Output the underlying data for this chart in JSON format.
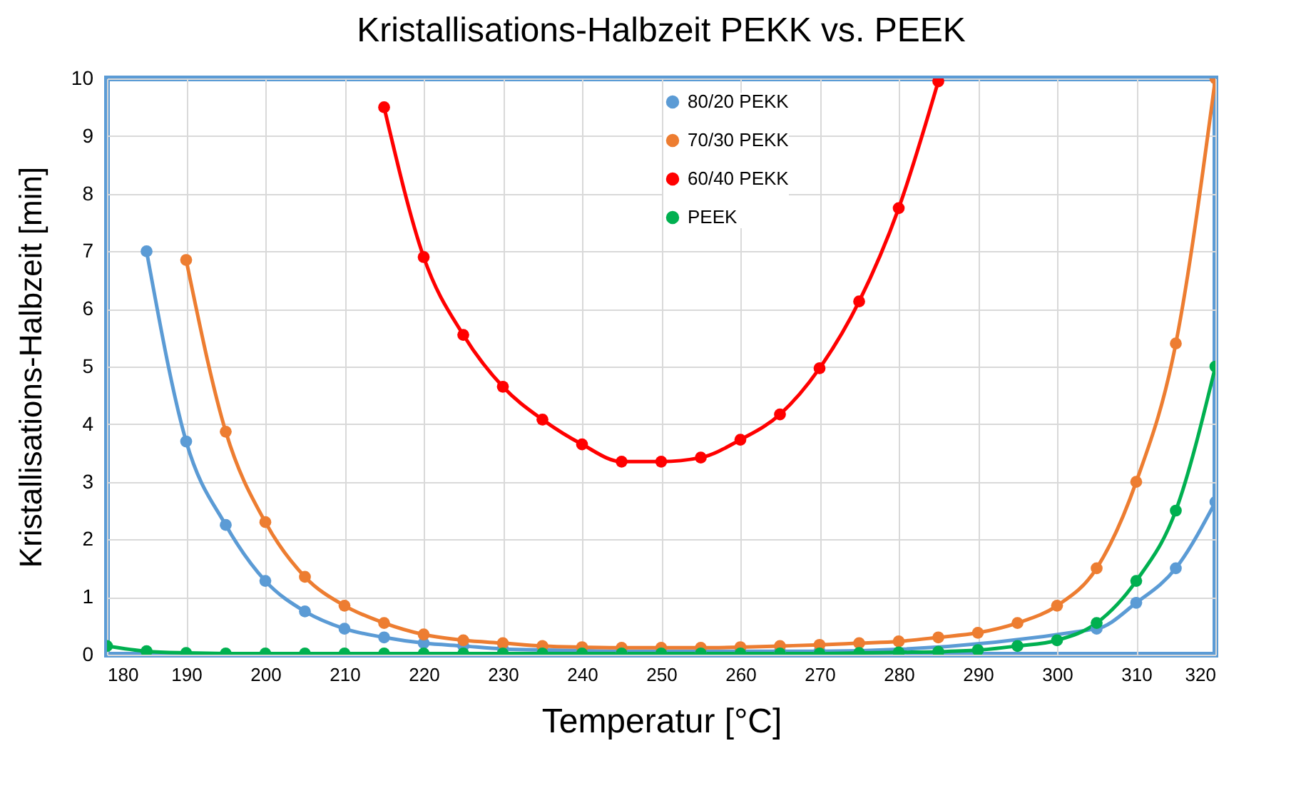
{
  "chart_data": {
    "type": "line",
    "title": "Kristallisations-Halbzeit PEKK vs. PEEK",
    "xlabel": "Temperatur [°C]",
    "ylabel": "Kristallisations-Halbzeit [min]",
    "x": [
      180,
      185,
      190,
      195,
      200,
      205,
      210,
      215,
      220,
      225,
      230,
      235,
      240,
      245,
      250,
      255,
      260,
      265,
      270,
      275,
      280,
      285,
      290,
      295,
      300,
      305,
      310,
      315,
      320
    ],
    "series": [
      {
        "name": "80/20 PEKK",
        "color": "#5b9bd5",
        "values": [
          null,
          7.0,
          3.7,
          2.25,
          1.28,
          0.75,
          0.45,
          0.3,
          0.2,
          0.15,
          0.1,
          0.08,
          0.07,
          0.06,
          0.06,
          0.06,
          0.06,
          0.06,
          0.06,
          null,
          null,
          null,
          null,
          null,
          null,
          0.45,
          0.9,
          1.5,
          2.65
        ]
      },
      {
        "name": "70/30 PEKK",
        "color": "#ed7d31",
        "values": [
          null,
          null,
          6.85,
          3.87,
          2.3,
          1.35,
          0.85,
          0.55,
          0.35,
          0.25,
          0.2,
          0.15,
          0.13,
          0.12,
          0.12,
          0.12,
          0.13,
          0.15,
          0.17,
          0.2,
          0.23,
          0.3,
          0.38,
          0.55,
          0.85,
          1.5,
          3.0,
          5.4,
          10.0
        ]
      },
      {
        "name": "60/40 PEKK",
        "color": "#ff0000",
        "values": [
          null,
          null,
          null,
          null,
          null,
          null,
          null,
          9.5,
          6.9,
          5.55,
          4.65,
          4.08,
          3.65,
          3.35,
          3.35,
          3.42,
          3.73,
          4.17,
          4.97,
          6.13,
          7.75,
          9.95,
          null,
          null,
          null,
          null,
          null,
          null,
          null
        ]
      },
      {
        "name": "PEEK",
        "color": "#00b050",
        "values": [
          0.15,
          0.06,
          0.03,
          0.02,
          0.02,
          0.02,
          0.02,
          0.02,
          0.02,
          0.02,
          0.02,
          0.02,
          0.02,
          0.02,
          0.02,
          0.02,
          0.02,
          0.02,
          0.02,
          0.03,
          0.04,
          0.05,
          0.08,
          0.15,
          0.25,
          0.55,
          1.28,
          2.5,
          5.0
        ]
      }
    ],
    "xlim": [
      180,
      320
    ],
    "xticks": [
      180,
      190,
      200,
      210,
      220,
      230,
      240,
      250,
      260,
      270,
      280,
      290,
      300,
      310,
      320
    ],
    "ylim": [
      0,
      10
    ],
    "yticks": [
      0,
      1,
      2,
      3,
      4,
      5,
      6,
      7,
      8,
      9,
      10
    ],
    "grid": true,
    "legend": "top",
    "marker": "circle",
    "line_style": "solid"
  }
}
